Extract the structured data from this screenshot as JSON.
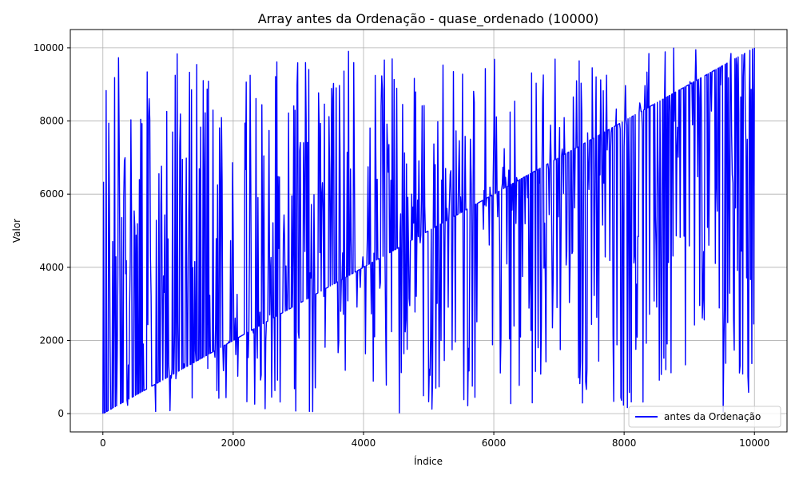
{
  "chart_data": {
    "type": "line",
    "title": "Array antes da Ordenação - quase_ordenado (10000)",
    "xlabel": "Índice",
    "ylabel": "Valor",
    "xlim": [
      -500,
      10500
    ],
    "ylim": [
      -500,
      10500
    ],
    "xticks": [
      0,
      2000,
      4000,
      6000,
      8000,
      10000
    ],
    "yticks": [
      0,
      2000,
      4000,
      6000,
      8000,
      10000
    ],
    "grid": true,
    "legend_position": "lower-right",
    "series": [
      {
        "name": "antes da Ordenação",
        "color": "#0000ff",
        "description_of_shape": "nearly sorted: baseline value equals index (0 to 10000) with frequent random spikes across full 0–10000 range",
        "n_points": 10000,
        "trend": {
          "start": [
            0,
            0
          ],
          "end": [
            10000,
            10000
          ]
        },
        "sample_points": [
          [
            0,
            0
          ],
          [
            25,
            9800
          ],
          [
            80,
            8900
          ],
          [
            120,
            600
          ],
          [
            200,
            9300
          ],
          [
            400,
            8500
          ],
          [
            1000,
            9200
          ],
          [
            1600,
            9800
          ],
          [
            2000,
            2000
          ],
          [
            3000,
            9500
          ],
          [
            3250,
            10000
          ],
          [
            3700,
            300
          ],
          [
            4000,
            4000
          ],
          [
            5000,
            9800
          ],
          [
            5150,
            100
          ],
          [
            5700,
            50
          ],
          [
            6000,
            6000
          ],
          [
            6500,
            9700
          ],
          [
            7000,
            9400
          ],
          [
            7500,
            9800
          ],
          [
            8000,
            8000
          ],
          [
            8500,
            9700
          ],
          [
            9000,
            9000
          ],
          [
            9500,
            1200
          ],
          [
            10000,
            10000
          ]
        ]
      }
    ]
  }
}
